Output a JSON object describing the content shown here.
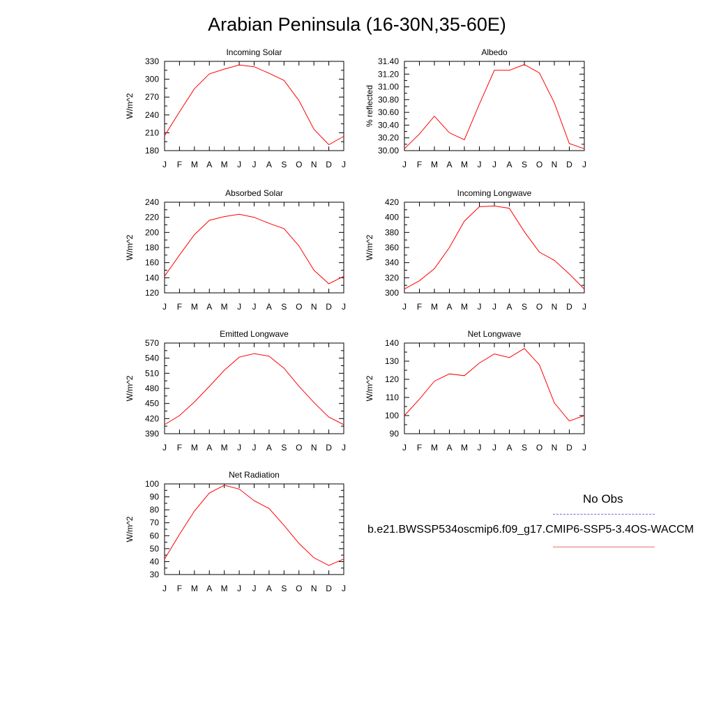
{
  "title": "Arabian Peninsula (16-30N,35-60E)",
  "legend": {
    "obs_label": "No Obs",
    "obs_color": "#6f6fd6",
    "model_label": "b.e21.BWSSP534oscmip6.f09_g17.CMIP6-SSP5-3.4OS-WACCM",
    "model_color": "#ff0000"
  },
  "chart_data": [
    {
      "type": "line",
      "title": "Incoming Solar",
      "ylabel": "W/m^2",
      "categories": [
        "J",
        "F",
        "M",
        "A",
        "M",
        "J",
        "J",
        "A",
        "S",
        "O",
        "N",
        "D",
        "J"
      ],
      "yticks": [
        "180",
        "210",
        "240",
        "270",
        "300",
        "330"
      ],
      "ylim": [
        180,
        330
      ],
      "series": [
        {
          "values": [
            205,
            245,
            284,
            309,
            317,
            324,
            321,
            310,
            298,
            264,
            216,
            190,
            204
          ]
        }
      ],
      "line_color": "#ff0000"
    },
    {
      "type": "line",
      "title": "Albedo",
      "ylabel": "% reflected",
      "categories": [
        "J",
        "F",
        "M",
        "A",
        "M",
        "J",
        "J",
        "A",
        "S",
        "O",
        "N",
        "D",
        "J"
      ],
      "yticks": [
        "30.00",
        "30.20",
        "30.40",
        "30.60",
        "30.80",
        "31.00",
        "31.20",
        "31.40"
      ],
      "ylim": [
        30.0,
        31.4
      ],
      "series": [
        {
          "values": [
            30.03,
            30.26,
            30.54,
            30.28,
            30.17,
            30.73,
            31.26,
            31.26,
            31.35,
            31.22,
            30.75,
            30.11,
            30.03
          ]
        }
      ],
      "line_color": "#ff0000"
    },
    {
      "type": "line",
      "title": "Absorbed Solar",
      "ylabel": "W/m^2",
      "categories": [
        "J",
        "F",
        "M",
        "A",
        "M",
        "J",
        "J",
        "A",
        "S",
        "O",
        "N",
        "D",
        "J"
      ],
      "yticks": [
        "120",
        "140",
        "160",
        "180",
        "200",
        "220",
        "240"
      ],
      "ylim": [
        120,
        240
      ],
      "series": [
        {
          "values": [
            142,
            170,
            197,
            216,
            221,
            224,
            220,
            212,
            205,
            182,
            150,
            132,
            142
          ]
        }
      ],
      "line_color": "#ff0000"
    },
    {
      "type": "line",
      "title": "Incoming Longwave",
      "ylabel": "W/m^2",
      "categories": [
        "J",
        "F",
        "M",
        "A",
        "M",
        "J",
        "J",
        "A",
        "S",
        "O",
        "N",
        "D",
        "J"
      ],
      "yticks": [
        "300",
        "320",
        "340",
        "360",
        "380",
        "400",
        "420"
      ],
      "ylim": [
        300,
        420
      ],
      "series": [
        {
          "values": [
            305,
            316,
            332,
            360,
            395,
            414,
            415,
            412,
            381,
            354,
            343,
            325,
            305
          ]
        }
      ],
      "line_color": "#ff0000"
    },
    {
      "type": "line",
      "title": "Emitted Longwave",
      "ylabel": "W/m^2",
      "categories": [
        "J",
        "F",
        "M",
        "A",
        "M",
        "J",
        "J",
        "A",
        "S",
        "O",
        "N",
        "D",
        "J"
      ],
      "yticks": [
        "390",
        "420",
        "450",
        "480",
        "510",
        "540",
        "570"
      ],
      "ylim": [
        390,
        570
      ],
      "series": [
        {
          "values": [
            408,
            426,
            453,
            484,
            516,
            542,
            549,
            544,
            520,
            484,
            452,
            423,
            408
          ]
        }
      ],
      "line_color": "#ff0000"
    },
    {
      "type": "line",
      "title": "Net Longwave",
      "ylabel": "W/m^2",
      "categories": [
        "J",
        "F",
        "M",
        "A",
        "M",
        "J",
        "J",
        "A",
        "S",
        "O",
        "N",
        "D",
        "J"
      ],
      "yticks": [
        "90",
        "100",
        "110",
        "120",
        "130",
        "140"
      ],
      "ylim": [
        90,
        140
      ],
      "series": [
        {
          "values": [
            100,
            109,
            119,
            123,
            122,
            129,
            134,
            132,
            137,
            128,
            107,
            97,
            100
          ]
        }
      ],
      "line_color": "#ff0000"
    },
    {
      "type": "line",
      "title": "Net Radiation",
      "ylabel": "W/m^2",
      "categories": [
        "J",
        "F",
        "M",
        "A",
        "M",
        "J",
        "J",
        "A",
        "S",
        "O",
        "N",
        "D",
        "J"
      ],
      "yticks": [
        "30",
        "40",
        "50",
        "60",
        "70",
        "80",
        "90",
        "100"
      ],
      "ylim": [
        30,
        100
      ],
      "series": [
        {
          "values": [
            42,
            61,
            79,
            93,
            99,
            96,
            87,
            81,
            68,
            54,
            43,
            37,
            42
          ]
        }
      ],
      "line_color": "#ff0000"
    }
  ]
}
